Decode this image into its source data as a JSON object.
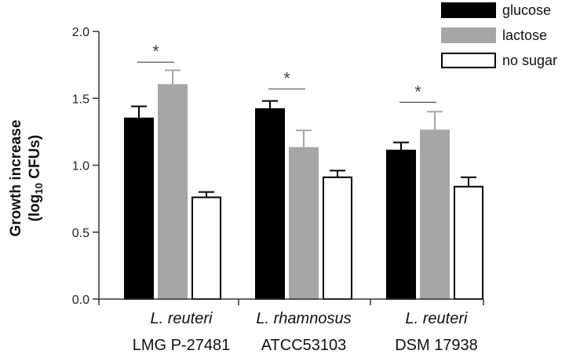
{
  "chart_data": {
    "type": "bar",
    "title": "",
    "xlabel": "",
    "ylabel_line1": "Growth increase",
    "ylabel_line2_prefix": "(log",
    "ylabel_line2_sub": "10",
    "ylabel_line2_suffix": " CFUs)",
    "ylim": [
      0,
      2.0
    ],
    "yticks": [
      {
        "value": 0.0,
        "label": "0.0"
      },
      {
        "value": 0.5,
        "label": "0.5"
      },
      {
        "value": 1.0,
        "label": "1.0"
      },
      {
        "value": 1.5,
        "label": "1.5"
      },
      {
        "value": 2.0,
        "label": "2.0"
      }
    ],
    "categories": [
      {
        "species": "L. reuteri",
        "strain": "LMG P-27481"
      },
      {
        "species": "L. rhamnosus",
        "strain": "ATCC53103"
      },
      {
        "species": "L. reuteri",
        "strain": "DSM 17938"
      }
    ],
    "series": [
      {
        "name": "glucose",
        "fill": "#000000",
        "stroke": "#000000",
        "error_color": "#000000",
        "values": [
          1.35,
          1.42,
          1.11
        ],
        "errors": [
          0.09,
          0.06,
          0.06
        ]
      },
      {
        "name": "lactose",
        "fill": "#a6a6a6",
        "stroke": "#a6a6a6",
        "error_color": "#a6a6a6",
        "values": [
          1.6,
          1.13,
          1.26
        ],
        "errors": [
          0.11,
          0.13,
          0.14
        ]
      },
      {
        "name": "no sugar",
        "fill": "#ffffff",
        "stroke": "#000000",
        "error_color": "#000000",
        "values": [
          0.76,
          0.91,
          0.84
        ],
        "errors": [
          0.04,
          0.05,
          0.07
        ]
      }
    ],
    "legend": {
      "position": "top-right",
      "entries": [
        "glucose",
        "lactose",
        "no sugar"
      ]
    },
    "significance": [
      {
        "category": 0,
        "label": "*",
        "y": 1.77
      },
      {
        "category": 1,
        "label": "*",
        "y": 1.57
      },
      {
        "category": 2,
        "label": "*",
        "y": 1.47
      }
    ]
  }
}
